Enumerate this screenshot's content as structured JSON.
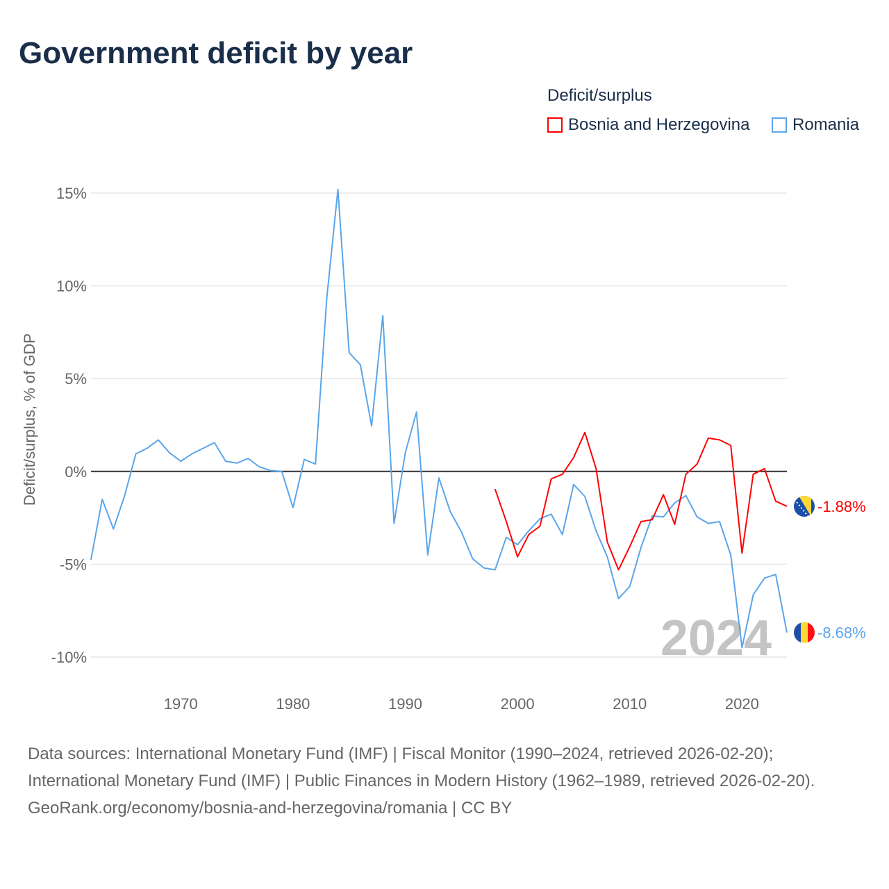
{
  "title": "Government deficit by year",
  "legend": {
    "title": "Deficit/surplus",
    "items": [
      {
        "label": "Bosnia and Herzegovina",
        "color": "#ff0000"
      },
      {
        "label": "Romania",
        "color": "#5aa5ea"
      }
    ]
  },
  "footer": {
    "sources": "Data sources: International Monetary Fund (IMF) | Fiscal Monitor (1990–2024, retrieved 2026-02-20); International Monetary Fund (IMF) | Public Finances in Modern History (1962–1989, retrieved 2026-02-20).",
    "credit": "GeoRank.org/economy/bosnia-and-herzegovina/romania | CC BY"
  },
  "chart_data": {
    "type": "line",
    "title": "Government deficit by year",
    "xlabel": "",
    "ylabel": "Deficit/surplus, % of GDP",
    "xlim": [
      1962,
      2024
    ],
    "ylim": [
      -10,
      15
    ],
    "xticks": [
      1970,
      1980,
      1990,
      2000,
      2010,
      2020
    ],
    "yticks": [
      -10,
      -5,
      0,
      5,
      10,
      15
    ],
    "ytick_labels": [
      "-10%",
      "-5%",
      "0%",
      "5%",
      "10%",
      "15%"
    ],
    "year_watermark": "2024",
    "series": [
      {
        "name": "Bosnia and Herzegovina",
        "color": "#ff0000",
        "end_label": "-1.88%",
        "x": [
          1998,
          1999,
          2000,
          2001,
          2002,
          2003,
          2004,
          2005,
          2006,
          2007,
          2008,
          2009,
          2010,
          2011,
          2012,
          2013,
          2014,
          2015,
          2016,
          2017,
          2018,
          2019,
          2020,
          2021,
          2022,
          2023,
          2024
        ],
        "values": [
          -0.95,
          -2.7,
          -4.6,
          -3.4,
          -2.95,
          -0.4,
          -0.15,
          0.75,
          2.1,
          0.15,
          -3.8,
          -5.3,
          -4.05,
          -2.7,
          -2.6,
          -1.25,
          -2.85,
          -0.15,
          0.4,
          1.8,
          1.7,
          1.4,
          -4.4,
          -0.15,
          0.15,
          -1.6,
          -1.88
        ]
      },
      {
        "name": "Romania",
        "color": "#5aa5ea",
        "end_label": "-8.68%",
        "x": [
          1962,
          1963,
          1964,
          1965,
          1966,
          1967,
          1968,
          1969,
          1970,
          1971,
          1972,
          1973,
          1974,
          1975,
          1976,
          1977,
          1978,
          1979,
          1980,
          1981,
          1982,
          1983,
          1984,
          1985,
          1986,
          1987,
          1988,
          1989,
          1990,
          1991,
          1992,
          1993,
          1994,
          1995,
          1996,
          1997,
          1998,
          1999,
          2000,
          2001,
          2002,
          2003,
          2004,
          2005,
          2006,
          2007,
          2008,
          2009,
          2010,
          2011,
          2012,
          2013,
          2014,
          2015,
          2016,
          2017,
          2018,
          2019,
          2020,
          2021,
          2022,
          2023,
          2024
        ],
        "values": [
          -4.76,
          -1.5,
          -3.1,
          -1.3,
          0.95,
          1.25,
          1.7,
          1.0,
          0.55,
          0.95,
          1.25,
          1.55,
          0.55,
          0.45,
          0.7,
          0.25,
          0.05,
          0,
          -1.95,
          0.65,
          0.4,
          9.3,
          15.2,
          6.4,
          5.75,
          2.45,
          8.4,
          -2.8,
          1.0,
          3.2,
          -4.5,
          -0.35,
          -2.15,
          -3.25,
          -4.7,
          -5.2,
          -5.3,
          -3.55,
          -3.95,
          -3.2,
          -2.55,
          -2.3,
          -3.4,
          -0.7,
          -1.35,
          -3.2,
          -4.6,
          -6.85,
          -6.2,
          -4.1,
          -2.4,
          -2.45,
          -1.7,
          -1.3,
          -2.45,
          -2.8,
          -2.7,
          -4.5,
          -9.5,
          -6.65,
          -5.75,
          -5.55,
          -8.68
        ]
      }
    ]
  }
}
